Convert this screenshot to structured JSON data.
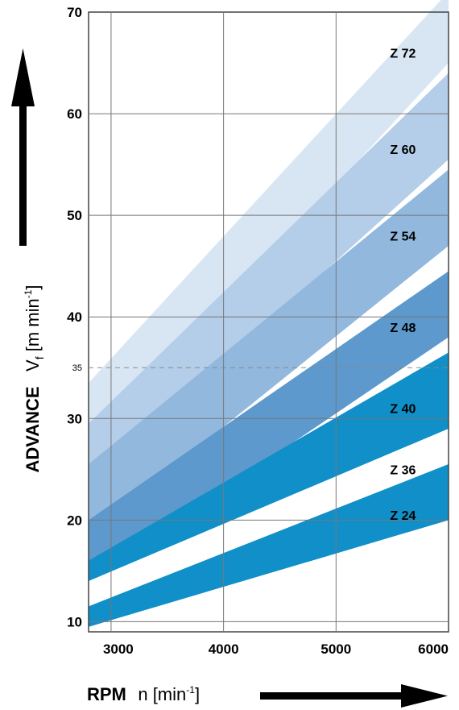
{
  "chart_data": {
    "type": "area",
    "x": [
      2800,
      6000
    ],
    "xlim": [
      2800,
      6000
    ],
    "ylim": [
      9,
      70
    ],
    "xticks": [
      "3000",
      "4000",
      "5000",
      "6000"
    ],
    "yticks": [
      "10",
      "20",
      "30",
      "40",
      "50",
      "60",
      "70"
    ],
    "reference_line": {
      "y": 35,
      "label": "35",
      "style": "dashed"
    },
    "grid": true,
    "xlabel": {
      "main": "RPM",
      "unit": "n [min",
      "sup": "-1",
      "close": "]"
    },
    "ylabel": {
      "main": "ADVANCE",
      "var": "V",
      "sub": "f",
      "unit": " [m min",
      "sup": "-1",
      "close": "]"
    },
    "series": [
      {
        "name": "Z 72",
        "low": [
          26.5,
          65
        ],
        "high": [
          33.5,
          72
        ],
        "color": "#d8e6f4"
      },
      {
        "name": "Z 60",
        "low": [
          23.5,
          55.5
        ],
        "high": [
          29.5,
          64
        ],
        "color": "#b4cde8"
      },
      {
        "name": "Z 54",
        "low": [
          18.5,
          47
        ],
        "high": [
          25.5,
          54.5
        ],
        "color": "#92b8de"
      },
      {
        "name": "Z 48",
        "low": [
          14,
          38
        ],
        "high": [
          20,
          44.5
        ],
        "color": "#5d99cc"
      },
      {
        "name": "Z 40",
        "low": [
          14,
          29
        ],
        "high": [
          16,
          36.5
        ],
        "color": "#108fc8"
      },
      {
        "name": "Z 36",
        "low": [
          9.5,
          20
        ],
        "high": [
          11.5,
          25.5
        ],
        "color": "#108fc8"
      },
      {
        "name": "Z 24",
        "low": [
          9.5,
          20
        ],
        "high": [
          11.5,
          25.5
        ],
        "color": "#108fc8"
      }
    ],
    "band_labels": [
      {
        "text": "Z 72",
        "y": 66
      },
      {
        "text": "Z 60",
        "y": 56.5
      },
      {
        "text": "Z 54",
        "y": 48
      },
      {
        "text": "Z 48",
        "y": 39
      },
      {
        "text": "Z 40",
        "y": 31
      },
      {
        "text": "Z 36",
        "y": 25
      },
      {
        "text": "Z 24",
        "y": 20.5
      }
    ]
  }
}
